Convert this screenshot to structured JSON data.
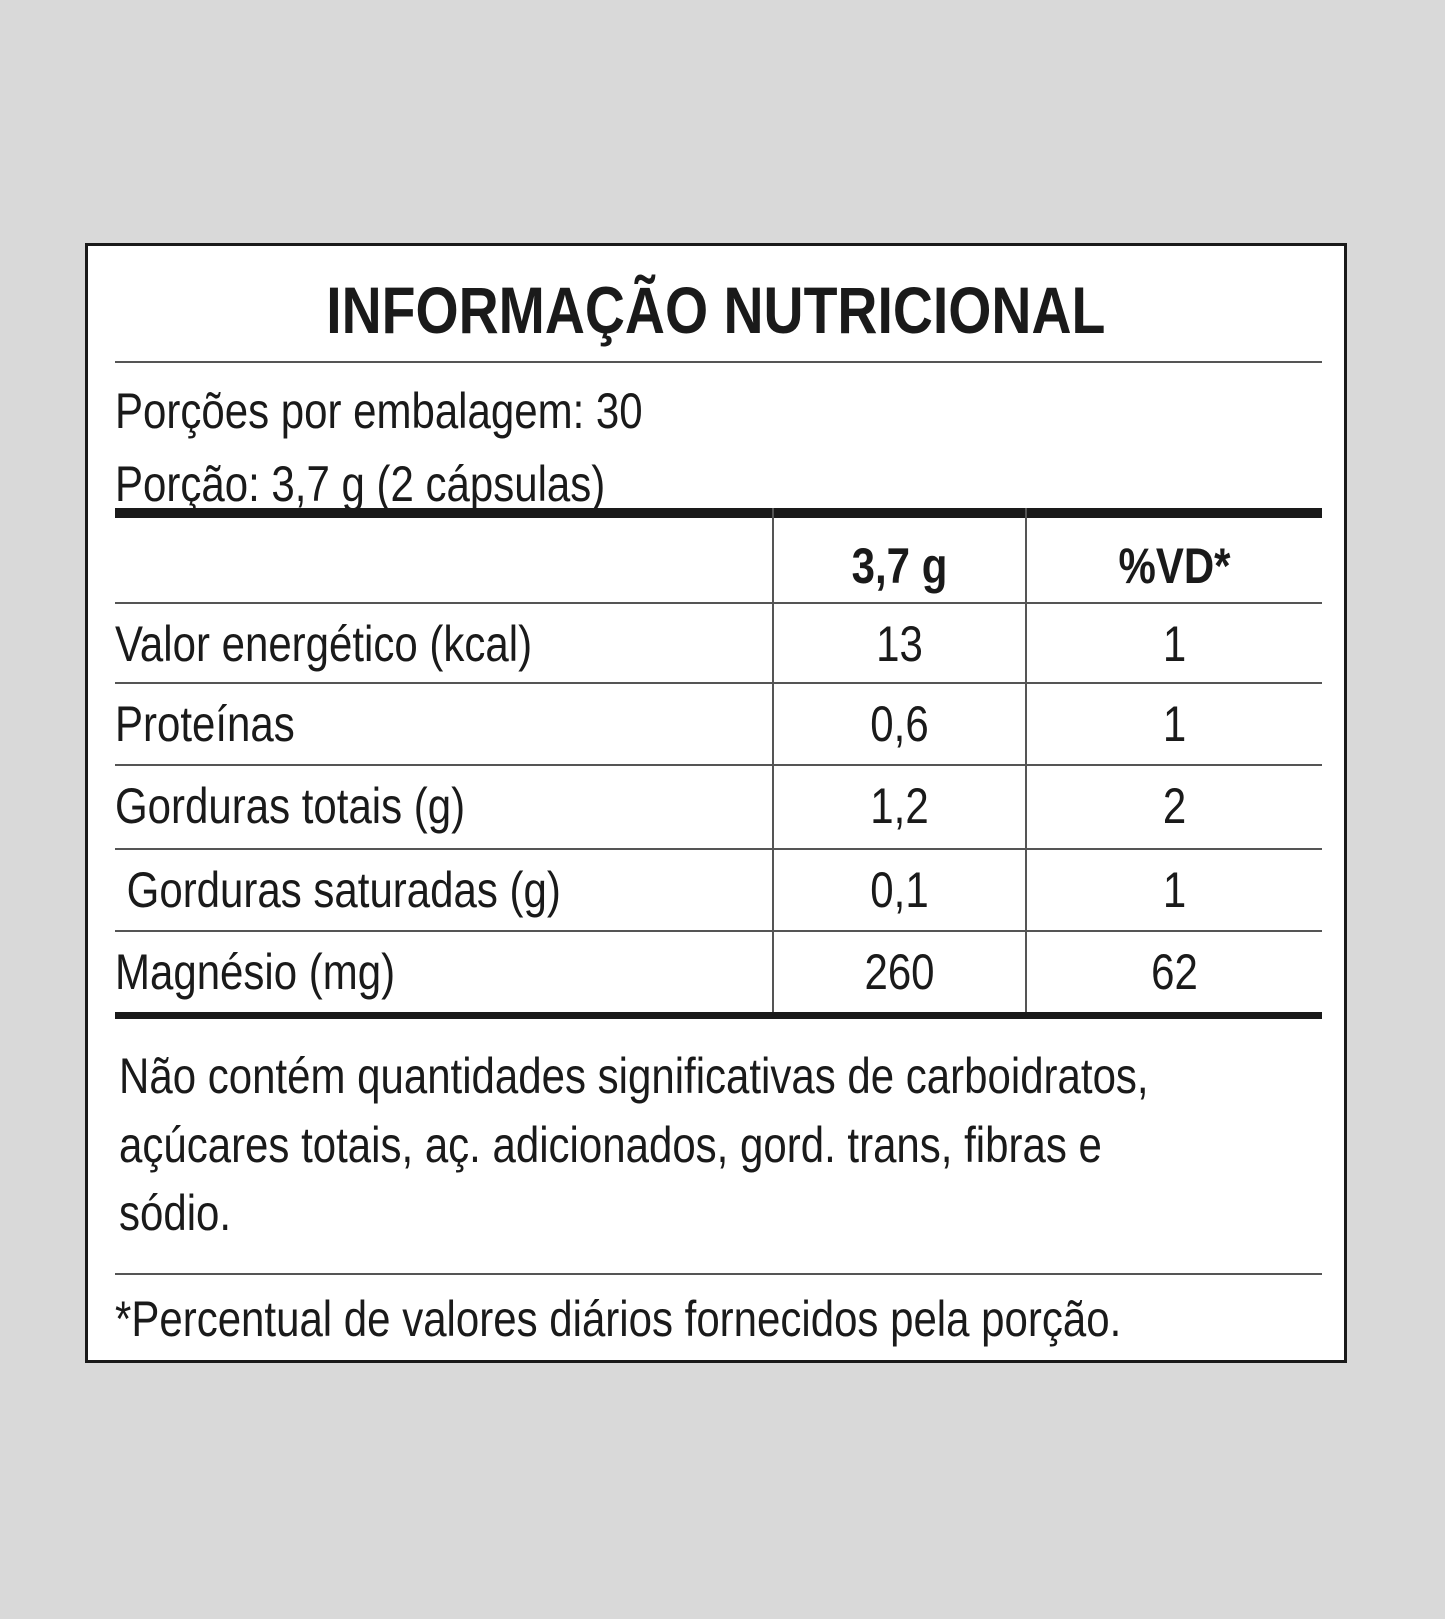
{
  "title": "INFORMAÇÃO NUTRICIONAL",
  "servings_per_package": "Porções por embalagem: 30",
  "serving_size": "Porção: 3,7 g (2 cápsulas)",
  "columns": {
    "amount": "3,7 g",
    "dv": "%VD*"
  },
  "rows": [
    {
      "label": "Valor energético (kcal)",
      "amount": "13",
      "dv": "1"
    },
    {
      "label": "Proteínas",
      "amount": "0,6",
      "dv": "1"
    },
    {
      "label": "Gorduras totais (g)",
      "amount": "1,2",
      "dv": "2"
    },
    {
      "label": " Gorduras saturadas (g)",
      "amount": "0,1",
      "dv": "1"
    },
    {
      "label": "Magnésio (mg)",
      "amount": "260",
      "dv": "62"
    }
  ],
  "note_lines": [
    "Não contém quantidades significativas de carboidratos,",
    "açúcares totais, aç. adicionados, gord. trans, fibras e",
    "sódio."
  ],
  "footnote": "*Percentual de valores diários fornecidos pela porção."
}
